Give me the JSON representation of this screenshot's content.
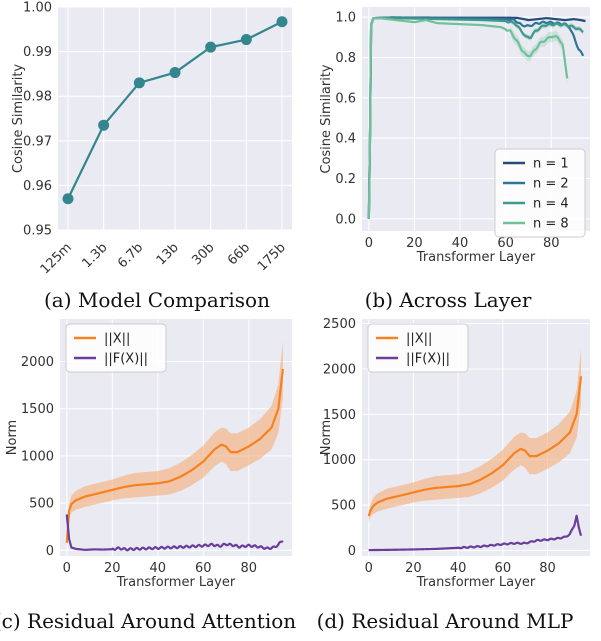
{
  "chart_data": [
    {
      "id": "a",
      "type": "line",
      "caption": "(a)  Model Comparison",
      "xlabel": "",
      "ylabel": "Cosine Similarity",
      "categories": [
        "125m",
        "1.3b",
        "6.7b",
        "13b",
        "30b",
        "66b",
        "175b"
      ],
      "ylim": [
        0.95,
        1.0
      ],
      "yticks": [
        "0.95",
        "0.96",
        "0.97",
        "0.98",
        "0.99",
        "1.00"
      ],
      "series": [
        {
          "values": [
            0.957,
            0.9735,
            0.983,
            0.9853,
            0.991,
            0.9927,
            0.9967
          ],
          "color": "#33868e"
        }
      ],
      "grid": true
    },
    {
      "id": "b",
      "type": "line",
      "caption": "(b)  Across Layer",
      "xlabel": "Transformer Layer",
      "ylabel": "Cosine Similarity",
      "xlim": [
        -3,
        97
      ],
      "ylim": [
        -0.06,
        1.05
      ],
      "xticks": [
        "0",
        "20",
        "40",
        "60",
        "80"
      ],
      "yticks": [
        "0.0",
        "0.2",
        "0.4",
        "0.6",
        "0.8",
        "1.0"
      ],
      "legend_position": "bottom-right",
      "series": [
        {
          "name": "n = 1",
          "color": "#264b7b",
          "x": [
            0,
            0.5,
            1,
            2,
            10,
            30,
            50,
            60,
            65,
            68,
            70,
            74,
            78,
            82,
            86,
            90,
            93,
            95
          ],
          "y": [
            0.0,
            0.4,
            0.96,
            0.995,
            0.998,
            0.997,
            0.997,
            0.997,
            0.996,
            0.99,
            0.985,
            0.99,
            0.995,
            0.99,
            0.985,
            0.99,
            0.985,
            0.98
          ]
        },
        {
          "name": "n = 2",
          "color": "#2e7597",
          "x": [
            0,
            0.5,
            1,
            2,
            10,
            30,
            50,
            60,
            64,
            67,
            70,
            74,
            78,
            82,
            86,
            88,
            90,
            92,
            94
          ],
          "y": [
            0.0,
            0.4,
            0.96,
            0.995,
            0.998,
            0.995,
            0.993,
            0.99,
            0.985,
            0.96,
            0.955,
            0.97,
            0.975,
            0.97,
            0.965,
            0.95,
            0.9,
            0.84,
            0.81
          ]
        },
        {
          "name": "n = 4",
          "color": "#3d9a8b",
          "x": [
            0,
            0.5,
            1,
            2,
            10,
            30,
            50,
            60,
            64,
            67,
            69,
            71,
            73,
            77,
            82,
            87,
            90,
            92,
            94
          ],
          "y": [
            0.0,
            0.4,
            0.96,
            0.995,
            0.995,
            0.99,
            0.985,
            0.98,
            0.97,
            0.93,
            0.9,
            0.9,
            0.93,
            0.96,
            0.965,
            0.96,
            0.95,
            0.94,
            0.93
          ]
        },
        {
          "name": "n = 8",
          "color": "#6fc198",
          "x": [
            0,
            0.5,
            1,
            2,
            6,
            12,
            20,
            25,
            30,
            40,
            50,
            58,
            62,
            65,
            67,
            69,
            71,
            73,
            75,
            78,
            80,
            83,
            85,
            87
          ],
          "y": [
            0.0,
            0.4,
            0.96,
            0.995,
            0.993,
            0.985,
            0.975,
            0.985,
            0.97,
            0.965,
            0.96,
            0.95,
            0.93,
            0.88,
            0.84,
            0.81,
            0.81,
            0.84,
            0.87,
            0.89,
            0.905,
            0.9,
            0.86,
            0.7
          ]
        }
      ],
      "grid": true
    },
    {
      "id": "c",
      "type": "line",
      "caption": "(c)  Residual Around Attention",
      "xlabel": "Transformer Layer",
      "ylabel": "Norm",
      "xlim": [
        -3,
        99
      ],
      "ylim": [
        -60,
        2450
      ],
      "xticks": [
        "0",
        "20",
        "40",
        "60",
        "80"
      ],
      "yticks": [
        "0",
        "500",
        "1000",
        "1500",
        "2000"
      ],
      "legend_position": "top-left",
      "series": [
        {
          "name": "||X||",
          "color": "#f5811f",
          "band_color": "#f4b27f",
          "x": [
            0,
            1,
            2,
            4,
            8,
            15,
            20,
            25,
            30,
            35,
            40,
            45,
            50,
            55,
            60,
            65,
            68,
            70,
            72,
            75,
            80,
            85,
            90,
            93,
            95
          ],
          "y": [
            80,
            420,
            490,
            530,
            570,
            610,
            640,
            670,
            690,
            700,
            710,
            730,
            780,
            850,
            940,
            1070,
            1120,
            1100,
            1040,
            1040,
            1100,
            1180,
            1300,
            1500,
            1920
          ],
          "band": [
            60,
            70,
            90,
            100,
            110,
            110,
            110,
            120,
            130,
            130,
            130,
            140,
            150,
            160,
            170,
            180,
            180,
            190,
            200,
            200,
            200,
            210,
            230,
            260,
            300
          ]
        },
        {
          "name": "||F(X)||",
          "color": "#6a3d9a",
          "x": [
            0,
            1,
            2,
            4,
            8,
            12,
            16,
            20,
            23,
            26,
            30,
            40,
            50,
            55,
            60,
            64,
            67,
            70,
            73,
            76,
            80,
            84,
            88,
            91,
            93,
            95
          ],
          "y": [
            380,
            120,
            30,
            15,
            5,
            10,
            8,
            12,
            22,
            10,
            15,
            25,
            35,
            42,
            50,
            60,
            45,
            65,
            55,
            38,
            50,
            40,
            20,
            30,
            60,
            110
          ]
        }
      ],
      "grid": true
    },
    {
      "id": "d",
      "type": "line",
      "caption": "(d)  Residual Around MLP",
      "xlabel": "Transformer Layer",
      "ylabel": "Norm",
      "xlim": [
        -3,
        99
      ],
      "ylim": [
        -60,
        2550
      ],
      "xticks": [
        "0",
        "20",
        "40",
        "60",
        "80"
      ],
      "yticks": [
        "0",
        "500",
        "1000",
        "1500",
        "2000",
        "2500"
      ],
      "legend_position": "top-left",
      "series": [
        {
          "name": "||X||",
          "color": "#f5811f",
          "band_color": "#f4b27f",
          "x": [
            0,
            1,
            2,
            4,
            8,
            15,
            20,
            25,
            30,
            35,
            40,
            45,
            50,
            55,
            60,
            65,
            68,
            70,
            72,
            75,
            80,
            85,
            90,
            93,
            95
          ],
          "y": [
            380,
            450,
            490,
            530,
            570,
            610,
            640,
            670,
            690,
            700,
            710,
            730,
            780,
            850,
            940,
            1070,
            1120,
            1100,
            1040,
            1040,
            1100,
            1180,
            1300,
            1500,
            1920
          ],
          "band": [
            60,
            70,
            90,
            100,
            110,
            110,
            110,
            120,
            130,
            130,
            130,
            140,
            150,
            160,
            170,
            180,
            180,
            190,
            200,
            200,
            200,
            210,
            230,
            260,
            300
          ]
        },
        {
          "name": "||F(X)||",
          "color": "#6a3d9a",
          "x": [
            0,
            10,
            20,
            30,
            40,
            50,
            60,
            65,
            70,
            75,
            80,
            85,
            88,
            90,
            92,
            93,
            94,
            95
          ],
          "y": [
            5,
            8,
            12,
            18,
            30,
            45,
            70,
            80,
            80,
            110,
            120,
            135,
            150,
            180,
            280,
            380,
            250,
            170
          ]
        }
      ],
      "grid": true
    }
  ]
}
